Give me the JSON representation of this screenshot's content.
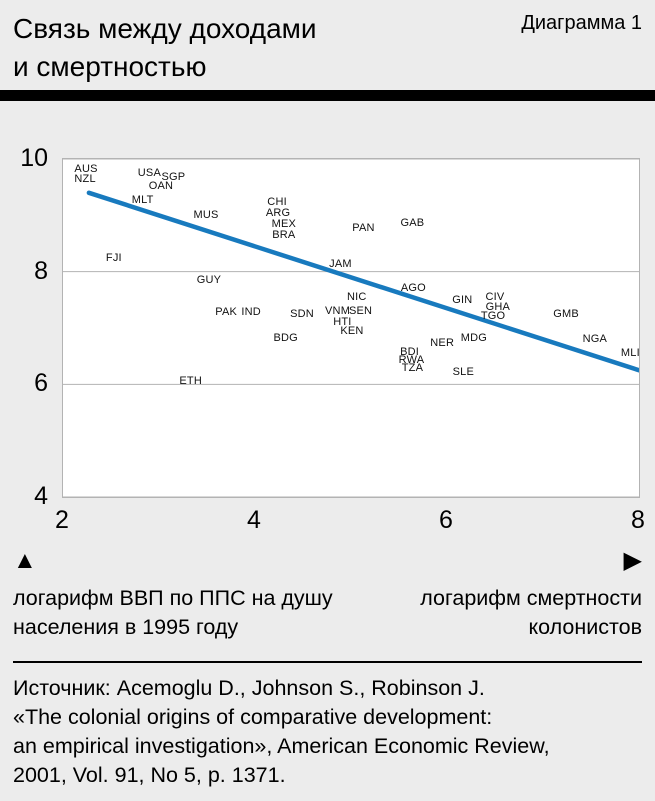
{
  "header": {
    "title": "Связь между доходами\nи смертностью",
    "diagram_label": "Диаграмма 1"
  },
  "chart_data": {
    "type": "scatter",
    "title": "Связь между доходами и смертностью",
    "xlabel": "логарифм смертности колонистов",
    "ylabel": "логарифм ВВП по ППС на душу населения в 1995 году",
    "xlim": [
      2,
      8
    ],
    "ylim": [
      4,
      10
    ],
    "x_ticks": [
      2,
      4,
      6,
      8
    ],
    "y_ticks": [
      10,
      8,
      6,
      4
    ],
    "grid": true,
    "line_color": "#187abe",
    "trend_line": {
      "x1": 2.27,
      "y1": 9.4,
      "x2": 8.0,
      "y2": 6.25
    },
    "points": [
      {
        "label": "AUS",
        "x": 2.24,
        "y": 9.82
      },
      {
        "label": "NZL",
        "x": 2.23,
        "y": 9.64
      },
      {
        "label": "USA",
        "x": 2.9,
        "y": 9.75
      },
      {
        "label": "SGP",
        "x": 3.15,
        "y": 9.68
      },
      {
        "label": "OAN",
        "x": 3.02,
        "y": 9.52
      },
      {
        "label": "MLT",
        "x": 2.83,
        "y": 9.27
      },
      {
        "label": "MUS",
        "x": 3.49,
        "y": 9.01
      },
      {
        "label": "CHI",
        "x": 4.23,
        "y": 9.24
      },
      {
        "label": "ARG",
        "x": 4.24,
        "y": 9.04
      },
      {
        "label": "MEX",
        "x": 4.3,
        "y": 8.85
      },
      {
        "label": "BRA",
        "x": 4.3,
        "y": 8.65
      },
      {
        "label": "PAN",
        "x": 5.13,
        "y": 8.78
      },
      {
        "label": "GAB",
        "x": 5.64,
        "y": 8.86
      },
      {
        "label": "FJI",
        "x": 2.53,
        "y": 8.24
      },
      {
        "label": "JAM",
        "x": 4.89,
        "y": 8.14
      },
      {
        "label": "GUY",
        "x": 3.52,
        "y": 7.85
      },
      {
        "label": "AGO",
        "x": 5.65,
        "y": 7.71
      },
      {
        "label": "NIC",
        "x": 5.06,
        "y": 7.55
      },
      {
        "label": "CIV",
        "x": 6.5,
        "y": 7.55
      },
      {
        "label": "GIN",
        "x": 6.16,
        "y": 7.5
      },
      {
        "label": "GHA",
        "x": 6.53,
        "y": 7.37
      },
      {
        "label": "PAK",
        "x": 3.7,
        "y": 7.28
      },
      {
        "label": "IND",
        "x": 3.96,
        "y": 7.28
      },
      {
        "label": "VNM",
        "x": 4.86,
        "y": 7.3
      },
      {
        "label": "SEN",
        "x": 5.1,
        "y": 7.3
      },
      {
        "label": "SDN",
        "x": 4.49,
        "y": 7.25
      },
      {
        "label": "TGO",
        "x": 6.48,
        "y": 7.21
      },
      {
        "label": "GMB",
        "x": 7.24,
        "y": 7.25
      },
      {
        "label": "HTI",
        "x": 4.91,
        "y": 7.11
      },
      {
        "label": "KEN",
        "x": 5.01,
        "y": 6.95
      },
      {
        "label": "BDG",
        "x": 4.32,
        "y": 6.82
      },
      {
        "label": "MDG",
        "x": 6.28,
        "y": 6.82
      },
      {
        "label": "NGA",
        "x": 7.54,
        "y": 6.8
      },
      {
        "label": "NER",
        "x": 5.95,
        "y": 6.73
      },
      {
        "label": "BDI",
        "x": 5.61,
        "y": 6.57
      },
      {
        "label": "MLI",
        "x": 7.91,
        "y": 6.56
      },
      {
        "label": "RWA",
        "x": 5.63,
        "y": 6.43
      },
      {
        "label": "TZA",
        "x": 5.64,
        "y": 6.29
      },
      {
        "label": "SLE",
        "x": 6.17,
        "y": 6.22
      },
      {
        "label": "ETH",
        "x": 3.33,
        "y": 6.06
      }
    ]
  },
  "axes": {
    "up_arrow_icon": "▲",
    "right_arrow_icon": "▶",
    "left_label": "логарифм ВВП по ППС на душу\nнаселения в 1995 году",
    "right_label": "логарифм смертности\nколонистов"
  },
  "source": {
    "text": "Источник: Acemoglu D., Johnson S., Robinson J.\n«The colonial origins of comparative development:\nan empirical investigation», American Economic Review,\n2001, Vol. 91, No 5, p. 1371."
  }
}
